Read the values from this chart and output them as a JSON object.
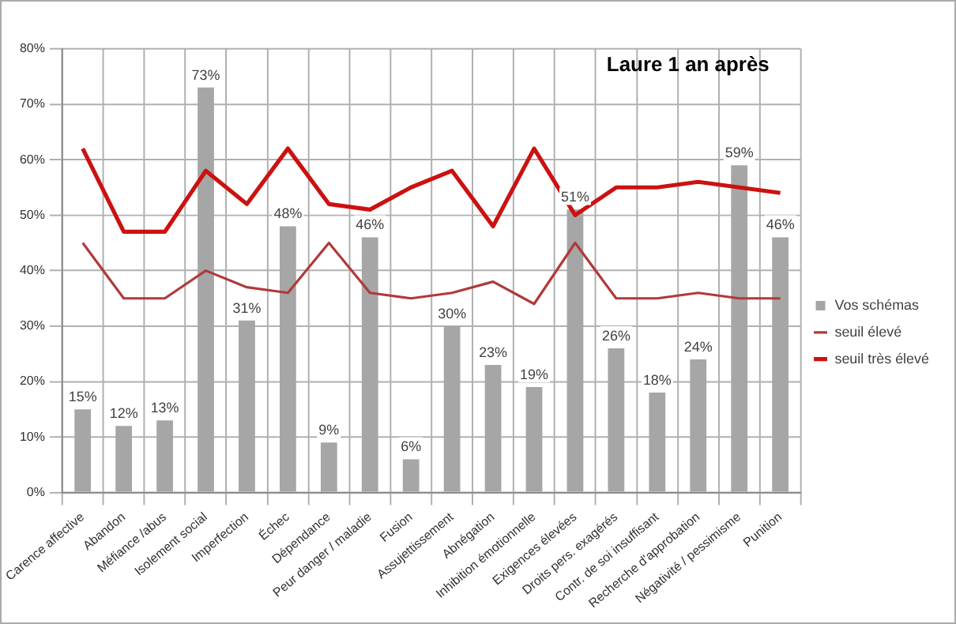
{
  "chart_data": {
    "type": "bar",
    "title": "Laure 1 an après",
    "categories": [
      "Carence affective",
      "Abandon",
      "Méfiance /abus",
      "Isolement social",
      "Imperfection",
      "Échec",
      "Dépendance",
      "Peur danger / maladie",
      "Fusion",
      "Assujettissement",
      "Abnégation",
      "Inhibition émotionnelle",
      "Exigences élevées",
      "Droits pers. exagérés",
      "Contr. de soi insuffisant",
      "Recherche d'approbation",
      "Négativité / pessimisme",
      "Punition"
    ],
    "series": [
      {
        "name": "Vos schémas",
        "color": "#a6a6a6",
        "values": [
          15,
          12,
          13,
          73,
          31,
          48,
          9,
          46,
          6,
          30,
          23,
          19,
          51,
          26,
          18,
          24,
          59,
          46
        ],
        "value_labels": [
          "15%",
          "12%",
          "13%",
          "73%",
          "31%",
          "48%",
          "9%",
          "46%",
          "6%",
          "30%",
          "23%",
          "19%",
          "51%",
          "26%",
          "18%",
          "24%",
          "59%",
          "46%"
        ]
      },
      {
        "name": "seuil élevé",
        "type": "line",
        "color": "#b03a3a",
        "values": [
          45,
          35,
          35,
          40,
          37,
          36,
          45,
          36,
          35,
          36,
          38,
          34,
          45,
          35,
          35,
          36,
          35,
          35
        ]
      },
      {
        "name": "seuil très élevé",
        "type": "line",
        "color": "#cc1111",
        "values": [
          62,
          47,
          47,
          58,
          52,
          62,
          52,
          51,
          55,
          58,
          48,
          62,
          50,
          55,
          55,
          56,
          55,
          54
        ]
      }
    ],
    "ylim": [
      0,
      80
    ],
    "yticks": [
      {
        "value": 0,
        "label": "0%"
      },
      {
        "value": 10,
        "label": "10%"
      },
      {
        "value": 20,
        "label": "20%"
      },
      {
        "value": 30,
        "label": "30%"
      },
      {
        "value": 40,
        "label": "40%"
      },
      {
        "value": 50,
        "label": "50%"
      },
      {
        "value": 60,
        "label": "60%"
      },
      {
        "value": 70,
        "label": "70%"
      },
      {
        "value": 80,
        "label": "80%"
      }
    ],
    "grid": true,
    "legend": "right",
    "marker": "none"
  }
}
